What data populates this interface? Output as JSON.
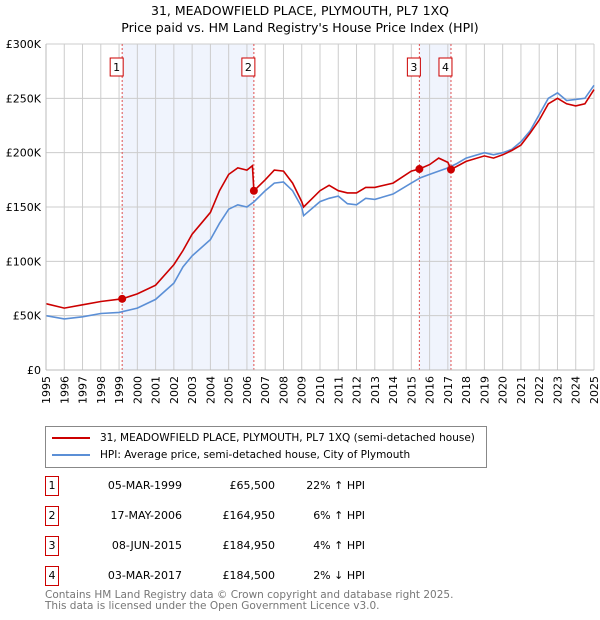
{
  "header": {
    "title": "31, MEADOWFIELD PLACE, PLYMOUTH, PL7 1XQ",
    "subtitle": "Price paid vs. HM Land Registry's House Price Index (HPI)"
  },
  "chart_data": {
    "type": "line",
    "title": "31, MEADOWFIELD PLACE, PLYMOUTH, PL7 1XQ",
    "subtitle": "Price paid vs. HM Land Registry's House Price Index (HPI)",
    "xlim": [
      1995,
      2025
    ],
    "ylim": [
      0,
      300000
    ],
    "x_ticks": [
      "1995",
      "1996",
      "1997",
      "1998",
      "1999",
      "2000",
      "2001",
      "2002",
      "2003",
      "2004",
      "2005",
      "2006",
      "2007",
      "2008",
      "2009",
      "2010",
      "2011",
      "2012",
      "2013",
      "2014",
      "2015",
      "2016",
      "2017",
      "2018",
      "2019",
      "2020",
      "2021",
      "2022",
      "2023",
      "2024",
      "2025"
    ],
    "y_ticks": [
      {
        "v": 0,
        "label": "£0"
      },
      {
        "v": 50000,
        "label": "£50K"
      },
      {
        "v": 100000,
        "label": "£100K"
      },
      {
        "v": 150000,
        "label": "£150K"
      },
      {
        "v": 200000,
        "label": "£200K"
      },
      {
        "v": 250000,
        "label": "£250K"
      },
      {
        "v": 300000,
        "label": "£300K"
      }
    ],
    "grid": true,
    "shaded_ranges": [
      [
        1999.17,
        2006.38
      ],
      [
        2015.44,
        2017.17
      ]
    ],
    "series": [
      {
        "name": "31, MEADOWFIELD PLACE, PLYMOUTH, PL7 1XQ (semi-detached house)",
        "color": "#cc0000",
        "x": [
          1995,
          1996,
          1997,
          1998,
          1999.17,
          2000,
          2001,
          2002,
          2002.5,
          2003,
          2003.5,
          2004,
          2004.5,
          2005,
          2005.5,
          2006,
          2006.3,
          2006.38,
          2007,
          2007.5,
          2008,
          2008.5,
          2009,
          2009.1,
          2010,
          2010.5,
          2011,
          2011.5,
          2012,
          2012.5,
          2013,
          2014,
          2015,
          2015.44,
          2016,
          2016.5,
          2017,
          2017.17,
          2018,
          2019,
          2019.5,
          2020,
          2020.5,
          2021,
          2021.5,
          2022,
          2022.5,
          2023,
          2023.5,
          2024,
          2024.5,
          2025
        ],
        "values": [
          61000,
          57000,
          60000,
          63000,
          65500,
          70000,
          78000,
          97000,
          110000,
          125000,
          135000,
          145000,
          165000,
          180000,
          186000,
          184000,
          188000,
          164950,
          175000,
          184000,
          183000,
          172000,
          155000,
          150000,
          165000,
          170000,
          165000,
          163000,
          163000,
          168000,
          168000,
          172000,
          183000,
          184950,
          189000,
          195000,
          191000,
          184500,
          192000,
          197000,
          195000,
          198000,
          202000,
          207000,
          218000,
          230000,
          245000,
          250000,
          245000,
          243000,
          245000,
          258000
        ]
      },
      {
        "name": "HPI: Average price, semi-detached house, City of Plymouth",
        "color": "#5b8fd6",
        "x": [
          1995,
          1996,
          1997,
          1998,
          1999,
          2000,
          2001,
          2002,
          2002.5,
          2003,
          2004,
          2004.5,
          2005,
          2005.5,
          2006,
          2006.4,
          2007,
          2007.5,
          2008,
          2008.5,
          2009,
          2009.1,
          2010,
          2010.5,
          2011,
          2011.5,
          2012,
          2012.5,
          2013,
          2014,
          2015,
          2015.5,
          2016,
          2016.5,
          2017,
          2017.5,
          2018,
          2019,
          2019.5,
          2020,
          2020.5,
          2021,
          2021.5,
          2022,
          2022.5,
          2023,
          2023.5,
          2024,
          2024.5,
          2025
        ],
        "values": [
          50000,
          47000,
          49000,
          52000,
          53000,
          57000,
          65000,
          80000,
          95000,
          105000,
          120000,
          135000,
          148000,
          152000,
          150000,
          155000,
          165000,
          172000,
          173000,
          165000,
          150000,
          142000,
          155000,
          158000,
          160000,
          153000,
          152000,
          158000,
          157000,
          162000,
          172000,
          177000,
          180000,
          183000,
          186000,
          190000,
          195000,
          200000,
          198000,
          200000,
          203000,
          210000,
          220000,
          235000,
          250000,
          255000,
          248000,
          249000,
          250000,
          262000
        ]
      }
    ],
    "sales": [
      {
        "num": "1",
        "x": 1999.17,
        "value": 65500,
        "date": "05-MAR-1999",
        "price": "£65,500",
        "hpi": "22% ↑ HPI"
      },
      {
        "num": "2",
        "x": 2006.38,
        "value": 164950,
        "date": "17-MAY-2006",
        "price": "£164,950",
        "hpi": "6% ↑ HPI"
      },
      {
        "num": "3",
        "x": 2015.44,
        "value": 184950,
        "date": "08-JUN-2015",
        "price": "£184,950",
        "hpi": "4% ↑ HPI"
      },
      {
        "num": "4",
        "x": 2017.17,
        "value": 184500,
        "date": "03-MAR-2017",
        "price": "£184,500",
        "hpi": "2% ↓ HPI"
      }
    ]
  },
  "legend": {
    "items": [
      {
        "label": "31, MEADOWFIELD PLACE, PLYMOUTH, PL7 1XQ (semi-detached house)",
        "color": "#cc0000"
      },
      {
        "label": "HPI: Average price, semi-detached house, City of Plymouth",
        "color": "#5b8fd6"
      }
    ]
  },
  "footer": {
    "line1": "Contains HM Land Registry data © Crown copyright and database right 2025.",
    "line2": "This data is licensed under the Open Government Licence v3.0."
  }
}
